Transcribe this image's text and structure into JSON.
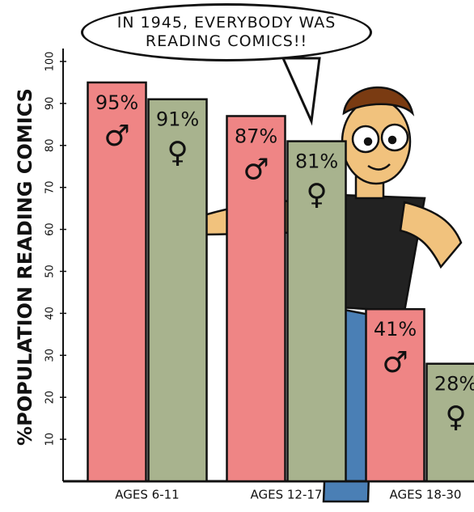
{
  "chart_data": {
    "type": "bar",
    "title": "IN 1945, EVERYBODY WAS READING COMICS!!",
    "y_label": "%POPULATION READING COMICS",
    "categories": [
      "AGES 6-11",
      "AGES 12-17",
      "AGES 18-30"
    ],
    "series": [
      {
        "name": "♂",
        "color": "#ef8585",
        "values": [
          95,
          87,
          41
        ],
        "value_labels": [
          "95%",
          "87%",
          "41%"
        ]
      },
      {
        "name": "♀",
        "color": "#a8b38e",
        "values": [
          91,
          81,
          28
        ],
        "value_labels": [
          "91%",
          "81%",
          "28%"
        ]
      }
    ],
    "ylim": [
      0,
      100
    ],
    "yticks": [
      10,
      20,
      30,
      40,
      50,
      60,
      70,
      80,
      90,
      100
    ]
  }
}
